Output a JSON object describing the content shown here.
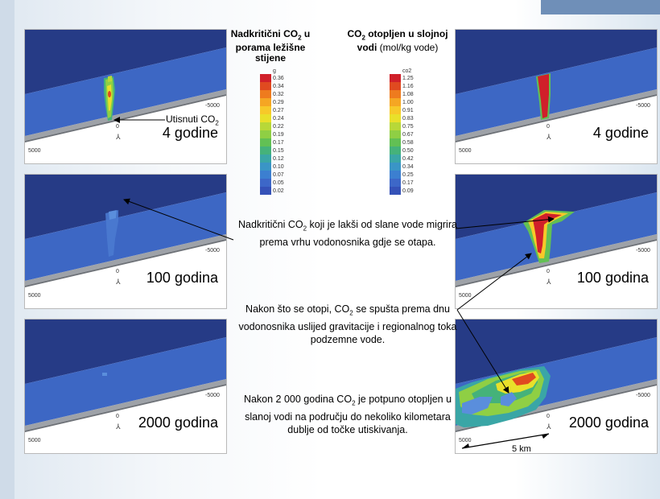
{
  "legends": {
    "supercritical": {
      "title_line1": "Nadkritični CO",
      "title_sub": "2",
      "title_after": " u",
      "title_line2": "porama ležišne",
      "title_line3": "stijene",
      "unit": "g",
      "ticks": [
        "0.36",
        "0.34",
        "0.32",
        "0.29",
        "0.27",
        "0.24",
        "0.22",
        "0.19",
        "0.17",
        "0.15",
        "0.12",
        "0.10",
        "0.07",
        "0.05",
        "0.02"
      ]
    },
    "dissolved": {
      "title_line1": "CO",
      "title_sub": "2",
      "title_after": " otopljen u slojnoj",
      "title_line2_bold": "vodi",
      "title_line2_rest": " (mol/kg vode)",
      "unit": "co2",
      "ticks": [
        "1.25",
        "1.16",
        "1.08",
        "1.00",
        "0.91",
        "0.83",
        "0.75",
        "0.67",
        "0.58",
        "0.50",
        "0.42",
        "0.34",
        "0.25",
        "0.17",
        "0.09"
      ]
    },
    "colors": [
      "#d0202a",
      "#e04a20",
      "#ee7b1e",
      "#f5a623",
      "#f7c929",
      "#e9e02a",
      "#b8d838",
      "#8fcf44",
      "#62c054",
      "#45b27a",
      "#3aa6a6",
      "#3a95c6",
      "#3c7fd0",
      "#3d67c8",
      "#3552b8"
    ]
  },
  "panels": {
    "left": [
      {
        "label": "4 godine",
        "x_left": "5000",
        "x_right": "-5000",
        "x_zero": "0"
      },
      {
        "label": "100 godina",
        "x_left": "5000",
        "x_right": "-5000",
        "x_zero": "0"
      },
      {
        "label": "2000 godina",
        "x_left": "5000",
        "x_right": "-5000",
        "x_zero": "0"
      }
    ],
    "right": [
      {
        "label": "4 godine",
        "x_left": "5000",
        "x_right": "-5000",
        "x_zero": "0"
      },
      {
        "label": "100 godina",
        "x_left": "5000",
        "x_right": "-5000",
        "x_zero": "0"
      },
      {
        "label": "2000 godina",
        "x_left": "5000",
        "x_right": "-5000",
        "x_zero": "0",
        "scale": "5 km"
      }
    ]
  },
  "annotations": {
    "injected_pre": "Utisnuti CO",
    "injected_sub": "2"
  },
  "notes": {
    "note1_pre": "Nadkritični CO",
    "note1_sub": "2",
    "note1_post": " koji je lakši od slane vode migrira prema vrhu vodonosnika gdje se otapa.",
    "note2_pre": "Nakon što se otopi, CO",
    "note2_sub": "2",
    "note2_post": " se spušta prema dnu vodonosnika uslijed gravitacije i regionalnog toka podzemne vode.",
    "note3_pre": "Nakon 2 000 godina CO",
    "note3_sub": "2",
    "note3_post": " je potpuno otopljen u slanoj vodi na području do nekoliko kilometara dublje od točke utiskivanja."
  }
}
